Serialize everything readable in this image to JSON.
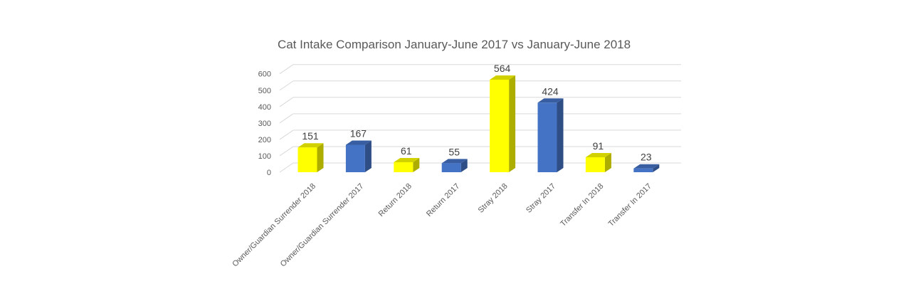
{
  "chart_data": {
    "type": "bar",
    "title": "Cat Intake Comparison January-June 2017 vs January-June 2018",
    "categories": [
      "Owner/Guardian Surrender 2018",
      "Owner/Guardian Surrender 2017",
      "Return 2018",
      "Return 2017",
      "Stray 2018",
      "Stray 2017",
      "Transfer In 2018",
      "Transfer In 2017"
    ],
    "values": [
      151,
      167,
      61,
      55,
      564,
      424,
      91,
      23
    ],
    "colors": [
      "#FFFF00",
      "#4472C4",
      "#FFFF00",
      "#4472C4",
      "#FFFF00",
      "#4472C4",
      "#FFFF00",
      "#4472C4"
    ],
    "yticks": [
      "0",
      "100",
      "200",
      "300",
      "400",
      "500",
      "600"
    ],
    "ylim": [
      0,
      600
    ],
    "grid": true,
    "legend": "none"
  }
}
